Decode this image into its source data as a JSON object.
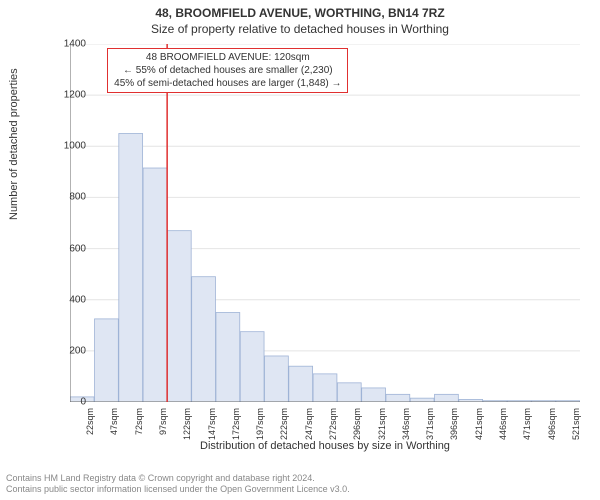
{
  "title": {
    "line1": "48, BROOMFIELD AVENUE, WORTHING, BN14 7RZ",
    "line2": "Size of property relative to detached houses in Worthing"
  },
  "ylabel": "Number of detached properties",
  "xlabel": "Distribution of detached houses by size in Worthing",
  "callout": {
    "line1": "48 BROOMFIELD AVENUE: 120sqm",
    "line2": "← 55% of detached houses are smaller (2,230)",
    "line3": "45% of semi-detached houses are larger (1,848) →",
    "border_color": "#e03030"
  },
  "footer": {
    "line1": "Contains HM Land Registry data © Crown copyright and database right 2024.",
    "line2": "Contains public sector information licensed under the Open Government Licence v3.0."
  },
  "chart": {
    "type": "bar",
    "categories": [
      "22sqm",
      "47sqm",
      "72sqm",
      "97sqm",
      "122sqm",
      "147sqm",
      "172sqm",
      "197sqm",
      "222sqm",
      "247sqm",
      "272sqm",
      "296sqm",
      "321sqm",
      "346sqm",
      "371sqm",
      "396sqm",
      "421sqm",
      "446sqm",
      "471sqm",
      "496sqm",
      "521sqm"
    ],
    "values": [
      20,
      325,
      1050,
      915,
      670,
      490,
      350,
      275,
      180,
      140,
      110,
      75,
      55,
      30,
      15,
      30,
      10,
      5,
      5,
      5,
      5
    ],
    "marker_index": 4,
    "marker_color": "#e03030",
    "bar_fill": "#dfe6f3",
    "bar_stroke": "#9fb3d6",
    "ylim": [
      0,
      1400
    ],
    "ytick_step": 200,
    "yticks": [
      0,
      200,
      400,
      600,
      800,
      1000,
      1200,
      1400
    ],
    "grid_color": "#e4e4e4",
    "axis_color": "#666666",
    "background_color": "#ffffff",
    "title_fontsize": 12,
    "label_fontsize": 11,
    "tick_fontsize": 10
  }
}
